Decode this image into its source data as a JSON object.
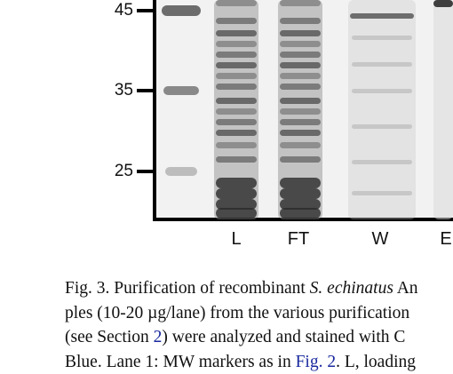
{
  "gel": {
    "mw_markers": [
      "45",
      "35",
      "25"
    ],
    "lanes": [
      "L",
      "FT",
      "W",
      "E"
    ]
  },
  "caption": {
    "line1_a": "Fig. 3.  Purification of recombinant ",
    "line1_species": "S. echinatus",
    "line1_b": " An",
    "line2_a": "ples (10-20 ",
    "line2_unit": "µg/lane",
    "line2_b": ") from the various purification",
    "line3_a": "(see Section ",
    "line3_ref": "2",
    "line3_b": ") were analyzed and stained with C",
    "line4_a": "Blue. Lane 1: MW markers as in ",
    "line4_ref": "Fig. 2",
    "line4_b": ". L, loading"
  },
  "colors": {
    "link": "#1a2a9e",
    "axis": "#000000"
  }
}
